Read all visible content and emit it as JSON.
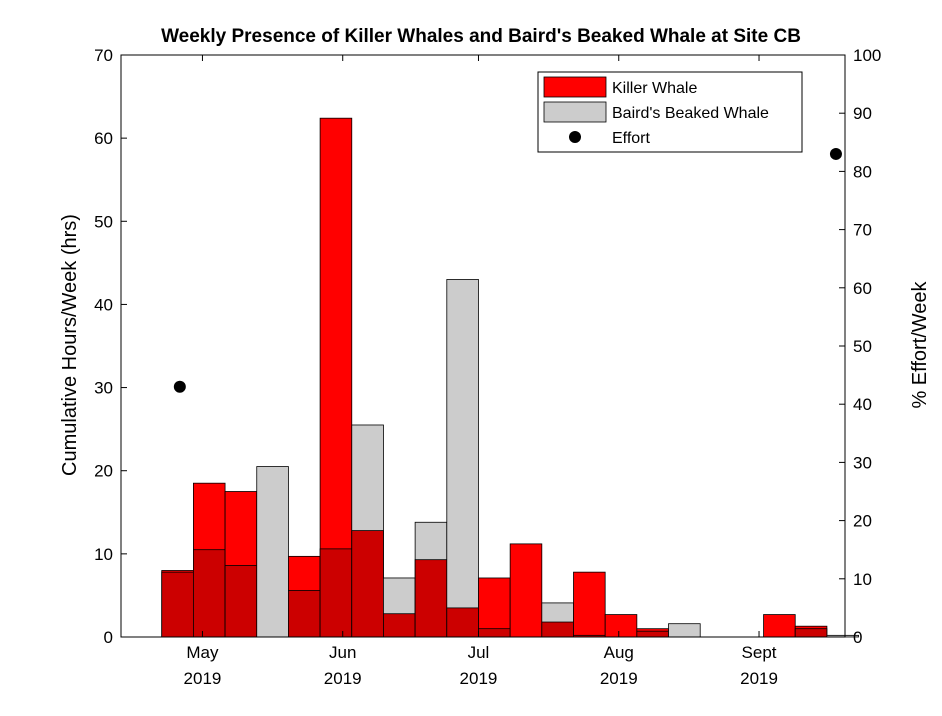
{
  "chart_data": {
    "type": "bar",
    "title": "Weekly Presence of Killer Whales and Baird's Beaked Whale at Site CB",
    "ylabel_left": "Cumulative Hours/Week (hrs)",
    "ylabel_right": "% Effort/Week",
    "xlim": [
      "2019-04-13",
      "2019-09-20"
    ],
    "ylim_left": [
      0,
      70
    ],
    "ylim_right": [
      0,
      100
    ],
    "yticks_left": [
      0,
      10,
      20,
      30,
      40,
      50,
      60,
      70
    ],
    "yticks_right": [
      0,
      10,
      20,
      30,
      40,
      50,
      60,
      70,
      80,
      90,
      100
    ],
    "xticks": [
      {
        "date": "2019-05-01",
        "month": "May",
        "year": "2019"
      },
      {
        "date": "2019-06-01",
        "month": "Jun",
        "year": "2019"
      },
      {
        "date": "2019-07-01",
        "month": "Jul",
        "year": "2019"
      },
      {
        "date": "2019-08-01",
        "month": "Aug",
        "year": "2019"
      },
      {
        "date": "2019-09-01",
        "month": "Sept",
        "year": "2019"
      }
    ],
    "legend": {
      "position": "top-right",
      "entries": [
        "Killer Whale",
        "Baird's Beaked Whale",
        "Effort"
      ]
    },
    "colors": {
      "killer_whale": "#ff0000",
      "bairds_beaked_whale": "#cccccc",
      "overlap": "#cc0000",
      "effort": "#000000"
    },
    "weeks": [
      "2019-04-22",
      "2019-04-29",
      "2019-05-06",
      "2019-05-13",
      "2019-05-20",
      "2019-05-27",
      "2019-06-03",
      "2019-06-10",
      "2019-06-17",
      "2019-06-24",
      "2019-07-01",
      "2019-07-08",
      "2019-07-15",
      "2019-07-22",
      "2019-07-29",
      "2019-08-05",
      "2019-08-12",
      "2019-08-19",
      "2019-08-26",
      "2019-09-02",
      "2019-09-09",
      "2019-09-16"
    ],
    "series": [
      {
        "name": "Killer Whale",
        "values": [
          8.0,
          18.5,
          17.5,
          0,
          9.7,
          62.4,
          12.8,
          2.8,
          9.3,
          3.5,
          7.1,
          11.2,
          1.8,
          7.8,
          2.7,
          1.0,
          0,
          0,
          0,
          2.7,
          1.3,
          0
        ]
      },
      {
        "name": "Baird's Beaked Whale",
        "values": [
          7.8,
          10.5,
          8.6,
          20.5,
          5.6,
          10.6,
          25.5,
          7.1,
          13.8,
          43.0,
          1.0,
          0,
          4.1,
          0.2,
          0,
          0.7,
          1.6,
          0,
          0,
          0,
          1.0,
          0.2
        ]
      },
      {
        "name": "Effort",
        "axis": "right",
        "points": [
          {
            "x": "2019-04-26",
            "y": 43
          },
          {
            "x": "2019-09-18",
            "y": 83
          }
        ]
      }
    ]
  }
}
